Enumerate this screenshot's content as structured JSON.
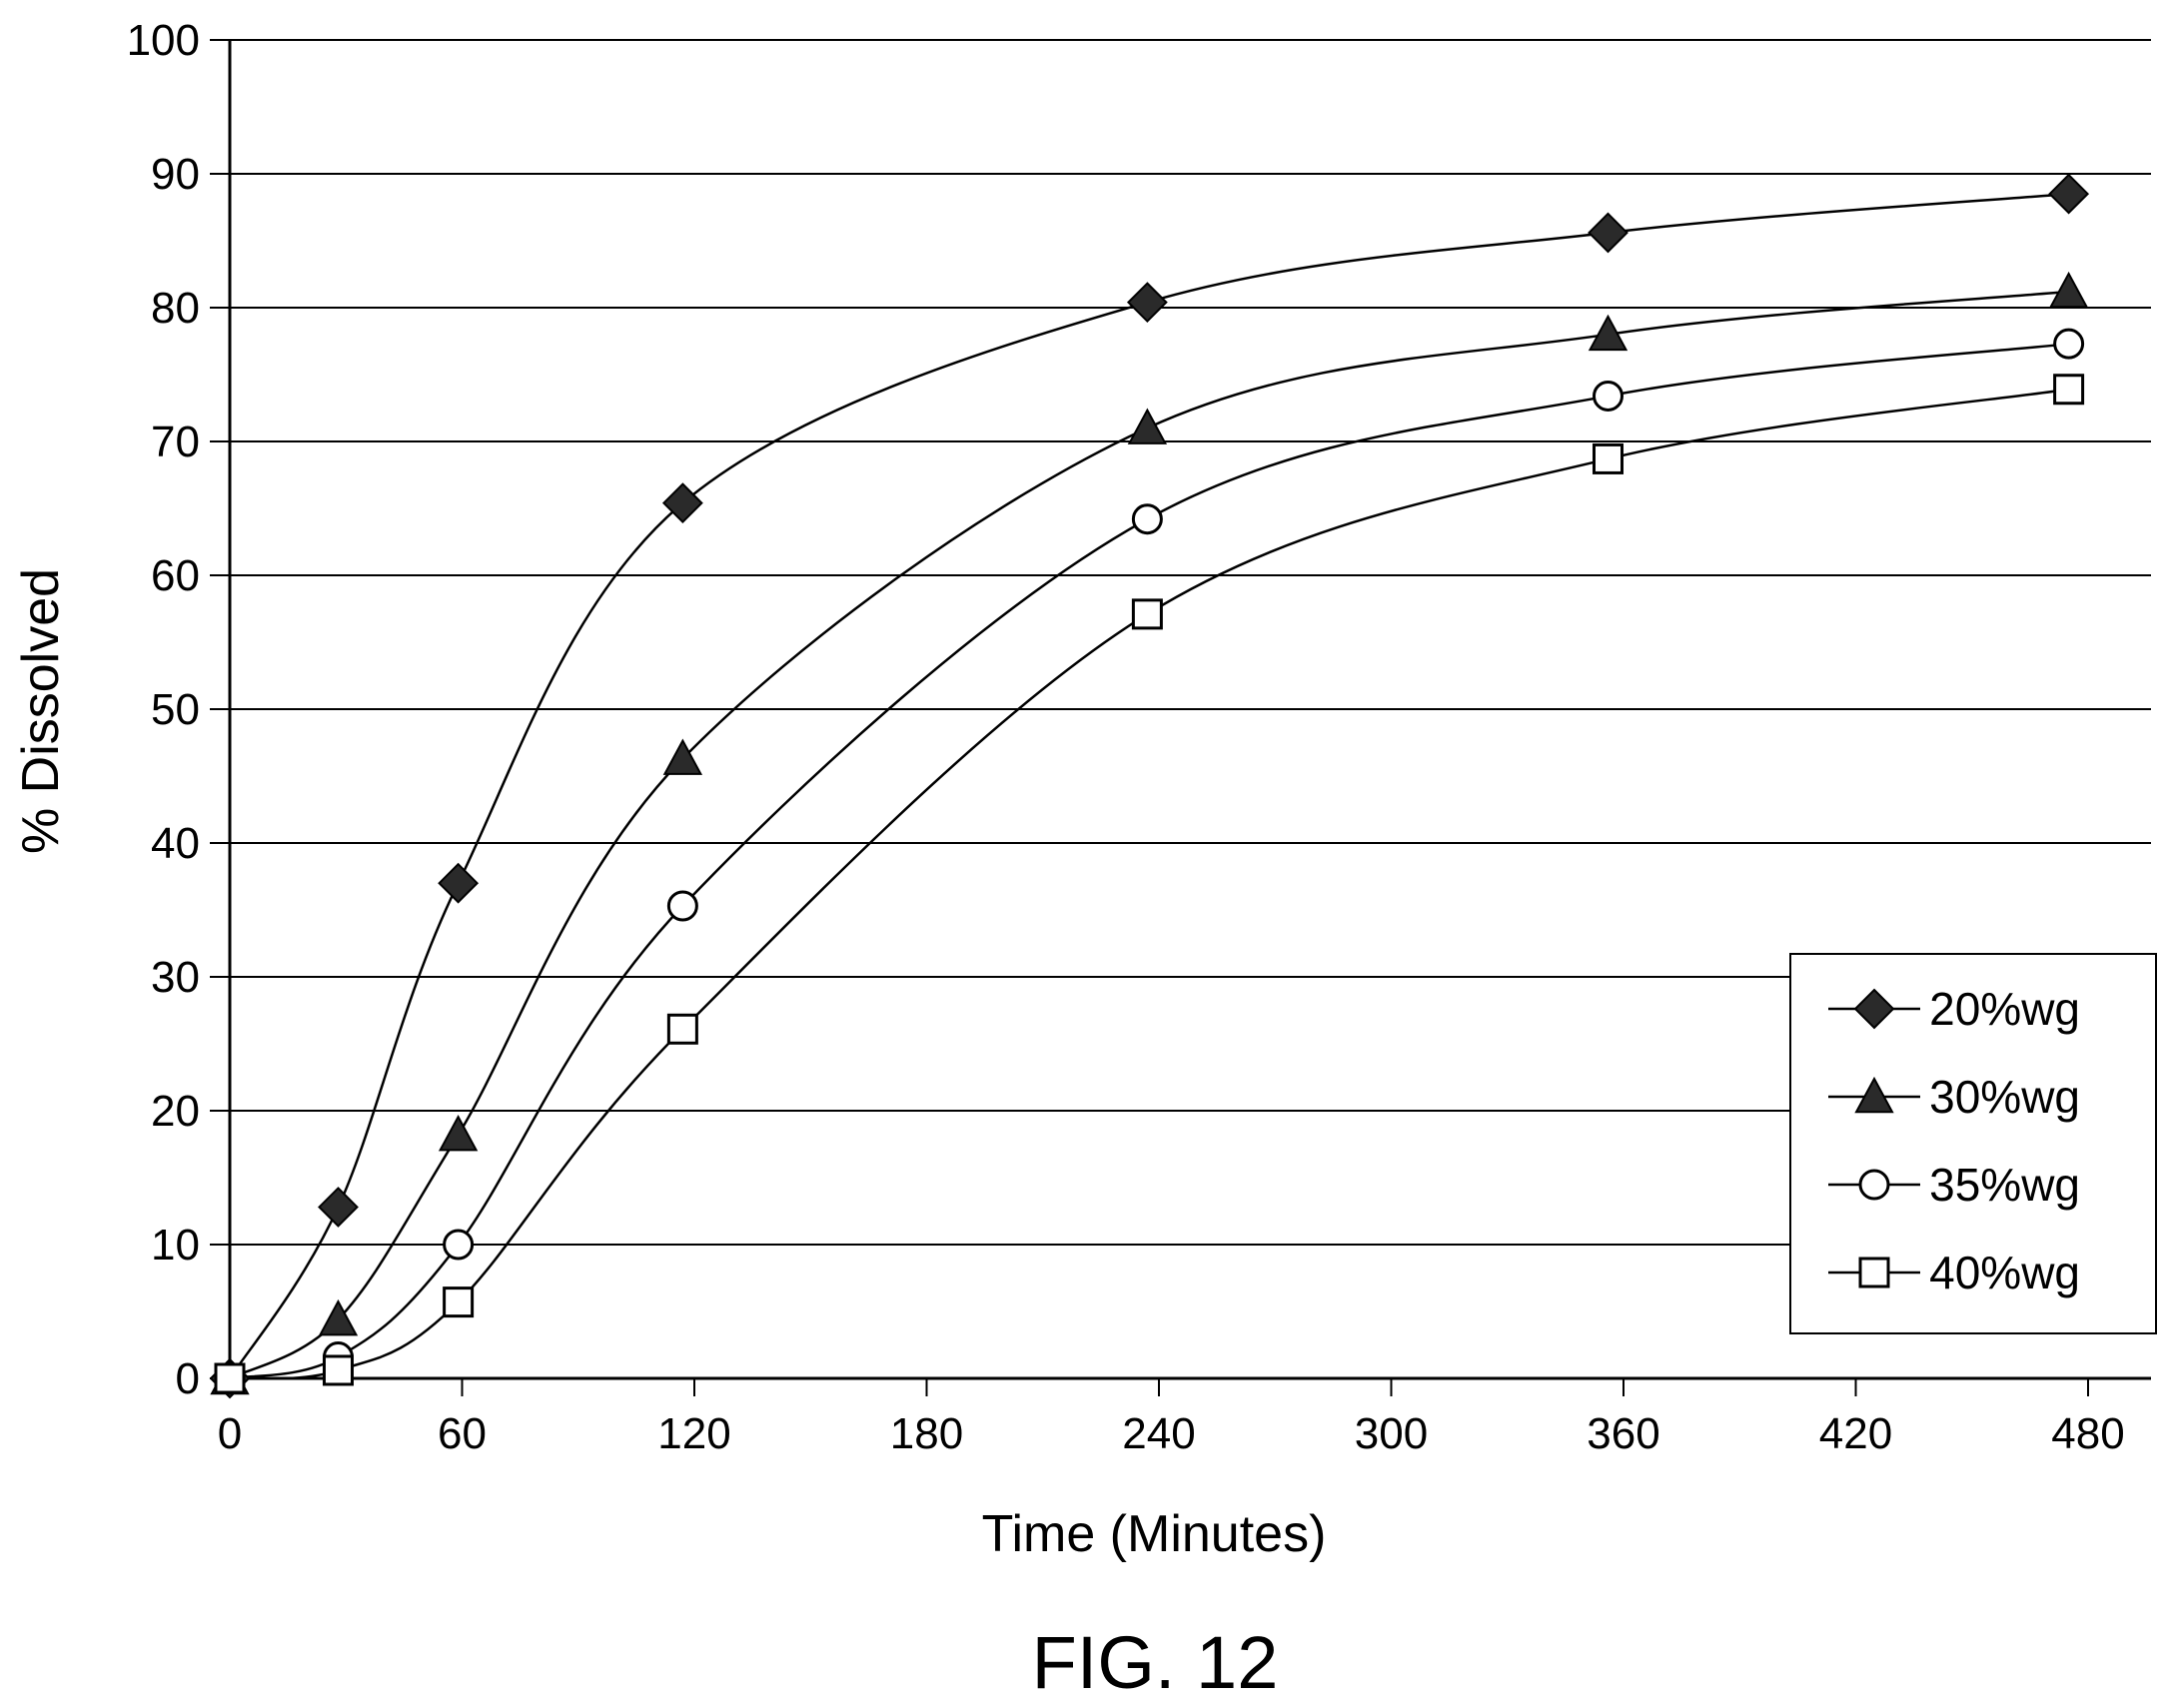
{
  "figure_caption": "FIG. 12",
  "chart_data": {
    "type": "line",
    "title": "",
    "xlabel": "Time (Minutes)",
    "ylabel": "% Dissolved",
    "xlim": [
      0,
      480
    ],
    "ylim": [
      0,
      100
    ],
    "x_ticks": [
      "0",
      "60",
      "120",
      "180",
      "240",
      "300",
      "360",
      "420",
      "480"
    ],
    "y_ticks": [
      "0",
      "10",
      "20",
      "30",
      "40",
      "50",
      "60",
      "70",
      "80",
      "90",
      "100"
    ],
    "grid": "horizontal",
    "legend_position": "bottom-right",
    "x": [
      0,
      28,
      59,
      117,
      237,
      356,
      475
    ],
    "series": [
      {
        "name": "20%wg",
        "marker": "diamond-filled",
        "values": [
          0,
          12.8,
          37.0,
          65.4,
          80.4,
          85.6,
          88.5
        ]
      },
      {
        "name": "30%wg",
        "marker": "triangle-filled",
        "values": [
          0,
          4.4,
          18.2,
          46.3,
          71.0,
          78.0,
          81.2
        ]
      },
      {
        "name": "35%wg",
        "marker": "circle-open",
        "values": [
          0,
          1.6,
          10.0,
          35.3,
          64.2,
          73.4,
          77.3
        ]
      },
      {
        "name": "40%wg",
        "marker": "square-open",
        "values": [
          0,
          0.6,
          5.7,
          26.1,
          57.1,
          68.7,
          73.9
        ]
      }
    ],
    "colors": {
      "line": "#000000",
      "grid": "#000000",
      "background": "#ffffff"
    }
  }
}
